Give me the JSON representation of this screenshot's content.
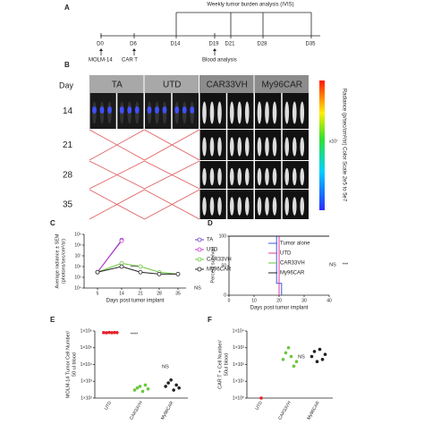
{
  "panel_a": {
    "letter": "A",
    "header": "Weekly tumor burden analysis (IVIS)",
    "days": [
      "D0",
      "D6",
      "D14",
      "D19",
      "D21",
      "D28",
      "D35"
    ],
    "events": [
      "MOLM-14",
      "CAR T",
      "Blood analysis"
    ]
  },
  "panel_b": {
    "letter": "B",
    "row_header": "Day",
    "groups": [
      "TA",
      "UTD",
      "CAR33VH",
      "My96CAR"
    ],
    "days": [
      "14",
      "21",
      "28",
      "35"
    ],
    "colorbar_unit": "x10⁷",
    "colorbar_label": "Radiance (p/sec/cm²/sr) Color Scale 2e5 to 5e7"
  },
  "panel_c": {
    "type": "line",
    "letter": "C",
    "ylabel": "Average radiance ± SEM",
    "ylabel2": "(photons/sec/cm²/sr)",
    "xlabel": "Days post tumor implant",
    "log_y": true,
    "ylim": [
      10000,
      1000000000
    ],
    "yticks": [
      {
        "value": 10000,
        "label": "10⁴"
      },
      {
        "value": 100000,
        "label": "10⁵"
      },
      {
        "value": 1000000,
        "label": "10⁶"
      },
      {
        "value": 10000000,
        "label": "10⁷"
      },
      {
        "value": 100000000,
        "label": "10⁸"
      },
      {
        "value": 1000000000,
        "label": "10⁹"
      }
    ],
    "xlim": [
      0,
      38
    ],
    "xticks": [
      5,
      14,
      21,
      28,
      35
    ],
    "series": [
      {
        "name": "TA",
        "color": "#6a3fc8",
        "x": [
          5,
          14
        ],
        "values": [
          300000,
          300000000
        ]
      },
      {
        "name": "UTD",
        "color": "#c43ad0",
        "x": [
          5,
          14
        ],
        "values": [
          300000,
          250000000
        ]
      },
      {
        "name": "CAR33VH",
        "color": "#6ac83c",
        "x": [
          5,
          14,
          21,
          28,
          35
        ],
        "values": [
          300000,
          2000000,
          1000000,
          300000,
          200000
        ]
      },
      {
        "name": "My96CAR",
        "color": "#222222",
        "x": [
          5,
          14,
          21,
          28,
          35
        ],
        "values": [
          300000,
          1000000,
          300000,
          200000,
          200000
        ]
      }
    ],
    "annotations": [
      "****",
      "NS"
    ]
  },
  "panel_d": {
    "type": "step",
    "letter": "D",
    "ylabel": "Percent survival",
    "xlabel": "Days post tumor implant",
    "ylim": [
      0,
      100
    ],
    "yticks": [
      0,
      50,
      100
    ],
    "xlim": [
      0,
      40
    ],
    "xticks": [
      0,
      10,
      20,
      30,
      40
    ],
    "series": [
      {
        "name": "Tumor alone",
        "color": "#3b5bdb",
        "x": [
          0,
          19,
          21
        ],
        "values": [
          100,
          20,
          0
        ]
      },
      {
        "name": "UTD",
        "color": "#e03a9c",
        "x": [
          0,
          20
        ],
        "values": [
          100,
          0
        ]
      },
      {
        "name": "CAR33VH",
        "color": "#6ac83c",
        "x": [
          0,
          35
        ],
        "values": [
          100,
          100
        ]
      },
      {
        "name": "My96CAR",
        "color": "#222222",
        "x": [
          0,
          40
        ],
        "values": [
          100,
          100
        ]
      }
    ],
    "annotations": [
      "NS",
      "***"
    ]
  },
  "panel_e": {
    "type": "dot",
    "letter": "E",
    "ylabel": "MOLM-14 Tumor Cell Number/",
    "ylabel2": "50 ul blood",
    "log_y": true,
    "ylim": [
      100,
      1000000
    ],
    "yticks": [
      {
        "value": 100,
        "label": "1×10²"
      },
      {
        "value": 1000,
        "label": "1×10³"
      },
      {
        "value": 10000,
        "label": "1×10⁴"
      },
      {
        "value": 100000,
        "label": "1×10⁵"
      },
      {
        "value": 1000000,
        "label": "1×10⁶"
      }
    ],
    "groups": [
      {
        "label": "UTD",
        "color": "#e8212b",
        "values": [
          800000,
          780000,
          820000,
          790000,
          810000,
          800000
        ]
      },
      {
        "label": "CAR33VH",
        "color": "#6ac83c",
        "values": [
          300,
          400,
          500,
          250,
          600,
          350
        ]
      },
      {
        "label": "My96CAR",
        "color": "#222222",
        "values": [
          500,
          800,
          1200,
          300,
          600,
          400
        ]
      }
    ],
    "annotations": [
      "****",
      "NS"
    ]
  },
  "panel_f": {
    "type": "dot",
    "letter": "F",
    "ylabel": "CAR T + Cell Number/",
    "ylabel2": "50ul blood",
    "log_y": true,
    "ylim": [
      1,
      10000
    ],
    "yticks": [
      {
        "value": 1,
        "label": "1×10⁰"
      },
      {
        "value": 10,
        "label": "1×10¹"
      },
      {
        "value": 100,
        "label": "1×10²"
      },
      {
        "value": 1000,
        "label": "1×10³"
      },
      {
        "value": 10000,
        "label": "1×10⁴"
      }
    ],
    "groups": [
      {
        "label": "UTD",
        "color": "#e8212b",
        "values": [
          1
        ]
      },
      {
        "label": "CAR33VH",
        "color": "#6ac83c",
        "values": [
          200,
          500,
          1000,
          300,
          80,
          150
        ]
      },
      {
        "label": "My96CAR",
        "color": "#222222",
        "values": [
          300,
          600,
          150,
          800,
          200,
          400
        ]
      }
    ],
    "annotations": [
      "NS"
    ]
  }
}
